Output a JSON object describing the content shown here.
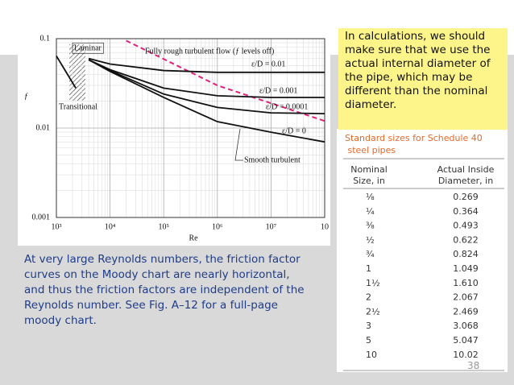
{
  "chart_data": {
    "type": "line",
    "xlog": true,
    "ylog": true,
    "grid": true,
    "xlabel": "Re",
    "ylabel": "ƒ",
    "xlim": [
      1000,
      100000000
    ],
    "ylim": [
      0.001,
      0.1
    ],
    "xticks": [
      {
        "value": 1000,
        "label": "10³"
      },
      {
        "value": 10000,
        "label": "10⁴"
      },
      {
        "value": 100000,
        "label": "10⁵"
      },
      {
        "value": 1000000,
        "label": "10⁶"
      },
      {
        "value": 10000000,
        "label": "10⁷"
      },
      {
        "value": 100000000,
        "label": "10"
      }
    ],
    "yticks": [
      0.001,
      0.01,
      0.1
    ],
    "annotations": [
      "Transitional",
      "Smooth turbulent"
    ],
    "series": [
      {
        "name": "Laminar",
        "color": "#111111",
        "x": [
          1000,
          2300
        ],
        "values": [
          0.064,
          0.028
        ]
      },
      {
        "name": "Fully rough turbulent flow (ƒ levels off)",
        "color": "#e0207a",
        "dashed": true,
        "x": [
          20000,
          1000000,
          100000000
        ],
        "values": [
          0.095,
          0.03,
          0.012
        ]
      },
      {
        "name": "ε/D = 0.01",
        "color": "#111111",
        "x": [
          4000,
          10000,
          100000,
          1000000,
          100000000
        ],
        "values": [
          0.06,
          0.052,
          0.044,
          0.042,
          0.042
        ]
      },
      {
        "name": "ε/D = 0.001",
        "color": "#111111",
        "x": [
          4000,
          10000,
          100000,
          1000000,
          10000000,
          100000000
        ],
        "values": [
          0.058,
          0.045,
          0.028,
          0.023,
          0.022,
          0.022
        ]
      },
      {
        "name": "ε/D = 0.0001",
        "color": "#111111",
        "x": [
          4000,
          10000,
          100000,
          1000000,
          10000000,
          100000000
        ],
        "values": [
          0.058,
          0.044,
          0.024,
          0.017,
          0.0148,
          0.0145
        ]
      },
      {
        "name": "ε/D = 0",
        "color": "#111111",
        "x": [
          4000,
          10000,
          100000,
          1000000,
          10000000,
          100000000
        ],
        "values": [
          0.058,
          0.043,
          0.022,
          0.0118,
          0.009,
          0.007
        ]
      }
    ]
  },
  "note": "In calculations, we should make sure that we use the actual internal diameter of the pipe, which may be different than the nominal diameter.",
  "caption": "At very large Reynolds numbers, the friction factor curves on the Moody chart are nearly horizontal, and thus the friction factors are independent of the Reynolds number. See Fig. A–12 for a full-page moody chart.",
  "table": {
    "title": "Standard sizes for Schedule 40 steel pipes",
    "header": [
      [
        "Nominal",
        "Size, in"
      ],
      [
        "Actual Inside",
        "Diameter, in"
      ]
    ],
    "rows": [
      [
        "⅛",
        "0.269"
      ],
      [
        "¼",
        "0.364"
      ],
      [
        "⅜",
        "0.493"
      ],
      [
        "½",
        "0.622"
      ],
      [
        "¾",
        "0.824"
      ],
      [
        "1",
        "1.049"
      ],
      [
        "1½",
        "1.610"
      ],
      [
        "2",
        "2.067"
      ],
      [
        "2½",
        "2.469"
      ],
      [
        "3",
        "3.068"
      ],
      [
        "5",
        "5.047"
      ],
      [
        "10",
        "10.02"
      ]
    ]
  },
  "page_number": "38"
}
